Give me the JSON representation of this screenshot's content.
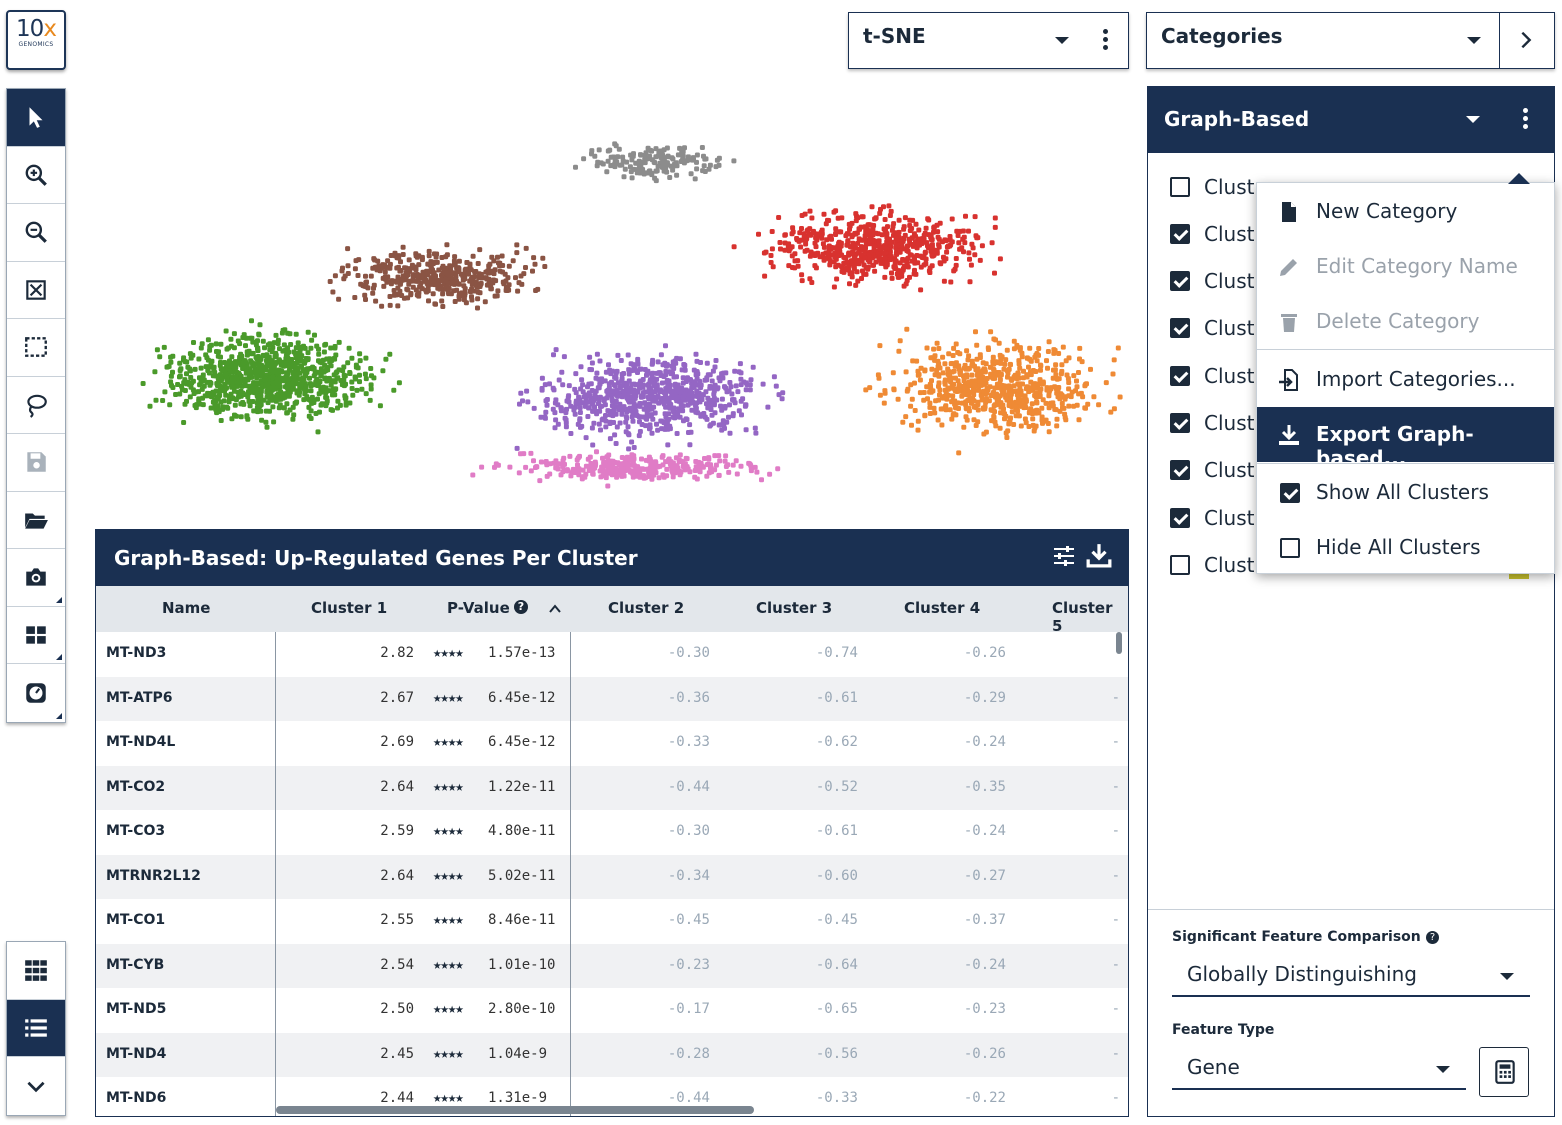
{
  "logo": {
    "line1_a": "10",
    "line1_b": "x",
    "line2": "GENOMICS"
  },
  "toolbar": {
    "tools": [
      "pointer-icon",
      "zoom-in-icon",
      "zoom-out-icon",
      "fit-icon",
      "rect-select-icon",
      "lasso-icon",
      "save-icon",
      "open-folder-icon",
      "camera-icon",
      "layout-icon",
      "gauge-icon"
    ],
    "view_buttons": [
      "grid-icon",
      "list-icon",
      "chevron-down-icon"
    ]
  },
  "projection": {
    "selected": "t-SNE"
  },
  "panel_mode": {
    "selected": "Categories"
  },
  "category": {
    "selected": "Graph-Based"
  },
  "clusters": [
    {
      "label": "Clust",
      "checked": false
    },
    {
      "label": "Clust",
      "checked": true
    },
    {
      "label": "Clust",
      "checked": true
    },
    {
      "label": "Clust",
      "checked": true
    },
    {
      "label": "Clust",
      "checked": true
    },
    {
      "label": "Clust",
      "checked": true
    },
    {
      "label": "Clust",
      "checked": true
    },
    {
      "label": "Clust",
      "checked": true
    },
    {
      "label": "Clust",
      "checked": false
    }
  ],
  "menu": {
    "new_category": "New Category",
    "edit_category": "Edit Category Name",
    "delete_category": "Delete Category",
    "import_categories": "Import Categories...",
    "export": "Export Graph-based...",
    "show_all": "Show All Clusters",
    "hide_all": "Hide All Clusters"
  },
  "settings": {
    "comparison_label": "Significant Feature Comparison",
    "comparison_value": "Globally Distinguishing",
    "feature_type_label": "Feature Type",
    "feature_type_value": "Gene"
  },
  "table": {
    "title": "Graph-Based: Up-Regulated Genes Per Cluster",
    "columns": [
      "Name",
      "Cluster 1",
      "P-Value",
      "Cluster 2",
      "Cluster 3",
      "Cluster 4",
      "Cluster 5"
    ],
    "rows": [
      {
        "name": "MT-ND3",
        "c1": "2.82",
        "stars": "★★★★",
        "p": "1.57e-13",
        "c2": "-0.30",
        "c3": "-0.74",
        "c4": "-0.26",
        "c5": ""
      },
      {
        "name": "MT-ATP6",
        "c1": "2.67",
        "stars": "★★★★",
        "p": "6.45e-12",
        "c2": "-0.36",
        "c3": "-0.61",
        "c4": "-0.29",
        "c5": "-"
      },
      {
        "name": "MT-ND4L",
        "c1": "2.69",
        "stars": "★★★★",
        "p": "6.45e-12",
        "c2": "-0.33",
        "c3": "-0.62",
        "c4": "-0.24",
        "c5": "-"
      },
      {
        "name": "MT-CO2",
        "c1": "2.64",
        "stars": "★★★★",
        "p": "1.22e-11",
        "c2": "-0.44",
        "c3": "-0.52",
        "c4": "-0.35",
        "c5": "-"
      },
      {
        "name": "MT-CO3",
        "c1": "2.59",
        "stars": "★★★★",
        "p": "4.80e-11",
        "c2": "-0.30",
        "c3": "-0.61",
        "c4": "-0.24",
        "c5": "-"
      },
      {
        "name": "MTRNR2L12",
        "c1": "2.64",
        "stars": "★★★★",
        "p": "5.02e-11",
        "c2": "-0.34",
        "c3": "-0.60",
        "c4": "-0.27",
        "c5": "-"
      },
      {
        "name": "MT-CO1",
        "c1": "2.55",
        "stars": "★★★★",
        "p": "8.46e-11",
        "c2": "-0.45",
        "c3": "-0.45",
        "c4": "-0.37",
        "c5": "-"
      },
      {
        "name": "MT-CYB",
        "c1": "2.54",
        "stars": "★★★★",
        "p": "1.01e-10",
        "c2": "-0.23",
        "c3": "-0.64",
        "c4": "-0.24",
        "c5": "-"
      },
      {
        "name": "MT-ND5",
        "c1": "2.50",
        "stars": "★★★★",
        "p": "2.80e-10",
        "c2": "-0.17",
        "c3": "-0.65",
        "c4": "-0.23",
        "c5": "-"
      },
      {
        "name": "MT-ND4",
        "c1": "2.45",
        "stars": "★★★★",
        "p": "1.04e-9",
        "c2": "-0.28",
        "c3": "-0.56",
        "c4": "-0.26",
        "c5": "-"
      },
      {
        "name": "MT-ND6",
        "c1": "2.44",
        "stars": "★★★★",
        "p": "1.31e-9",
        "c2": "-0.44",
        "c3": "-0.33",
        "c4": "-0.22",
        "c5": "-"
      }
    ]
  },
  "plot_colors": {
    "green": "#4a9a2a",
    "brown": "#8a5444",
    "gray": "#8c8c8c",
    "red": "#d8322f",
    "purple": "#9466c4",
    "orange": "#ef8a35",
    "pink": "#e07cc6"
  }
}
